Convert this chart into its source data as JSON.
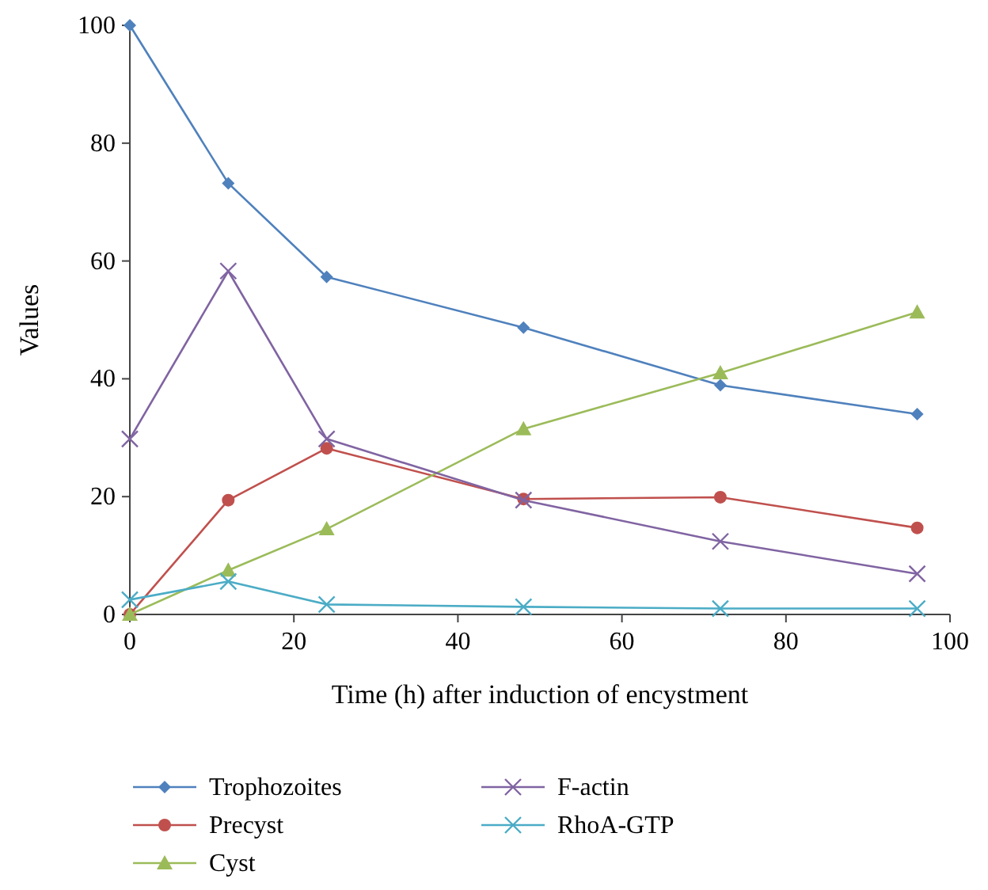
{
  "chart_data": {
    "type": "line",
    "xlabel": "Time (h) after induction of encystment",
    "ylabel": "Values",
    "x": [
      0,
      12,
      24,
      48,
      72,
      96
    ],
    "xlim": [
      0,
      100
    ],
    "xticks": [
      0,
      20,
      40,
      60,
      80,
      100
    ],
    "ylim": [
      0,
      100
    ],
    "yticks": [
      0,
      20,
      40,
      60,
      80,
      100
    ],
    "grid": false,
    "legend": "bottom",
    "line_style": "solid",
    "series": [
      {
        "name": "Trophozoites",
        "color": "#4f81bd",
        "marker": "diamond",
        "values": [
          100,
          73.2,
          57.3,
          48.7,
          38.9,
          34
        ]
      },
      {
        "name": "Precyst",
        "color": "#c0504d",
        "marker": "circle",
        "values": [
          0,
          19.4,
          28.2,
          19.6,
          19.9,
          14.7
        ]
      },
      {
        "name": "Cyst",
        "color": "#9bbb59",
        "marker": "triangle",
        "values": [
          0,
          7.5,
          14.5,
          31.5,
          41,
          51.3
        ]
      },
      {
        "name": "F-actin",
        "color": "#8064a2",
        "marker": "cross",
        "values": [
          29.8,
          58.3,
          29.8,
          19.4,
          12.4,
          6.9
        ]
      },
      {
        "name": "RhoA-GTP",
        "color": "#4bacc6",
        "marker": "cross",
        "values": [
          2.5,
          5.6,
          1.7,
          1.3,
          1,
          1
        ]
      }
    ]
  }
}
